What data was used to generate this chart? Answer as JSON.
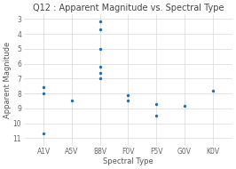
{
  "title": "Q12 : Apparent Magnitude vs. Spectral Type",
  "xlabel": "Spectral Type",
  "ylabel": "Apparent Magnitude",
  "categories": [
    "A1V",
    "A5V",
    "B8V",
    "F0V",
    "F5V",
    "G0V",
    "K0V"
  ],
  "points": [
    {
      "x": "A1V",
      "y": 7.6
    },
    {
      "x": "A1V",
      "y": 8.0
    },
    {
      "x": "A1V",
      "y": 10.7
    },
    {
      "x": "A5V",
      "y": 8.5
    },
    {
      "x": "B8V",
      "y": 3.15
    },
    {
      "x": "B8V",
      "y": 3.7
    },
    {
      "x": "B8V",
      "y": 5.0
    },
    {
      "x": "B8V",
      "y": 6.2
    },
    {
      "x": "B8V",
      "y": 6.6
    },
    {
      "x": "B8V",
      "y": 7.0
    },
    {
      "x": "F0V",
      "y": 8.1
    },
    {
      "x": "F0V",
      "y": 8.5
    },
    {
      "x": "F5V",
      "y": 8.7
    },
    {
      "x": "F5V",
      "y": 9.5
    },
    {
      "x": "G0V",
      "y": 8.85
    },
    {
      "x": "K0V",
      "y": 7.8
    }
  ],
  "dot_color": "#1f6eb5",
  "dot_size": 6,
  "background_color": "#ffffff",
  "plot_bg_color": "#ffffff",
  "ylim": [
    11.5,
    2.7
  ],
  "yticks": [
    3,
    4,
    5,
    6,
    7,
    8,
    9,
    10,
    11
  ],
  "grid_color": "#d8d8d8",
  "title_fontsize": 7,
  "axis_fontsize": 6,
  "tick_fontsize": 5.5
}
